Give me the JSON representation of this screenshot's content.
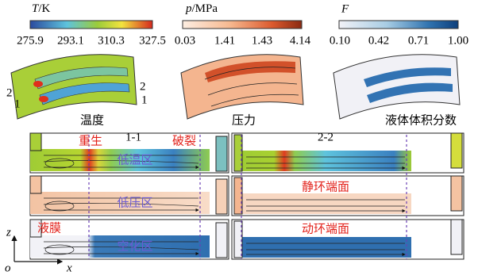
{
  "colorbars": [
    {
      "symbol": "T",
      "unit": "/K",
      "ticks": [
        "275.9",
        "293.1",
        "310.3",
        "327.5"
      ]
    },
    {
      "symbol": "p",
      "unit": "/MPa",
      "ticks": [
        "0.03",
        "1.41",
        "1.43",
        "4.14"
      ]
    },
    {
      "symbol": "F",
      "unit": "",
      "ticks": [
        "0.10",
        "0.42",
        "0.71",
        "1.00"
      ]
    }
  ],
  "panel_labels": [
    "温度",
    "压力",
    "液体体积分数"
  ],
  "section_marks": [
    "2",
    "1",
    "2",
    "1"
  ],
  "sections": [
    "1-1",
    "2-2"
  ],
  "annotations": {
    "regen": "重生",
    "rupture": "破裂",
    "low_temp": "低温区",
    "low_pressure": "低压区",
    "cavitation": "空化区",
    "film": "液膜",
    "stationary": "静环端面",
    "rotating": "动环端面"
  },
  "axes": {
    "z": "z",
    "o": "o",
    "x": "x"
  }
}
